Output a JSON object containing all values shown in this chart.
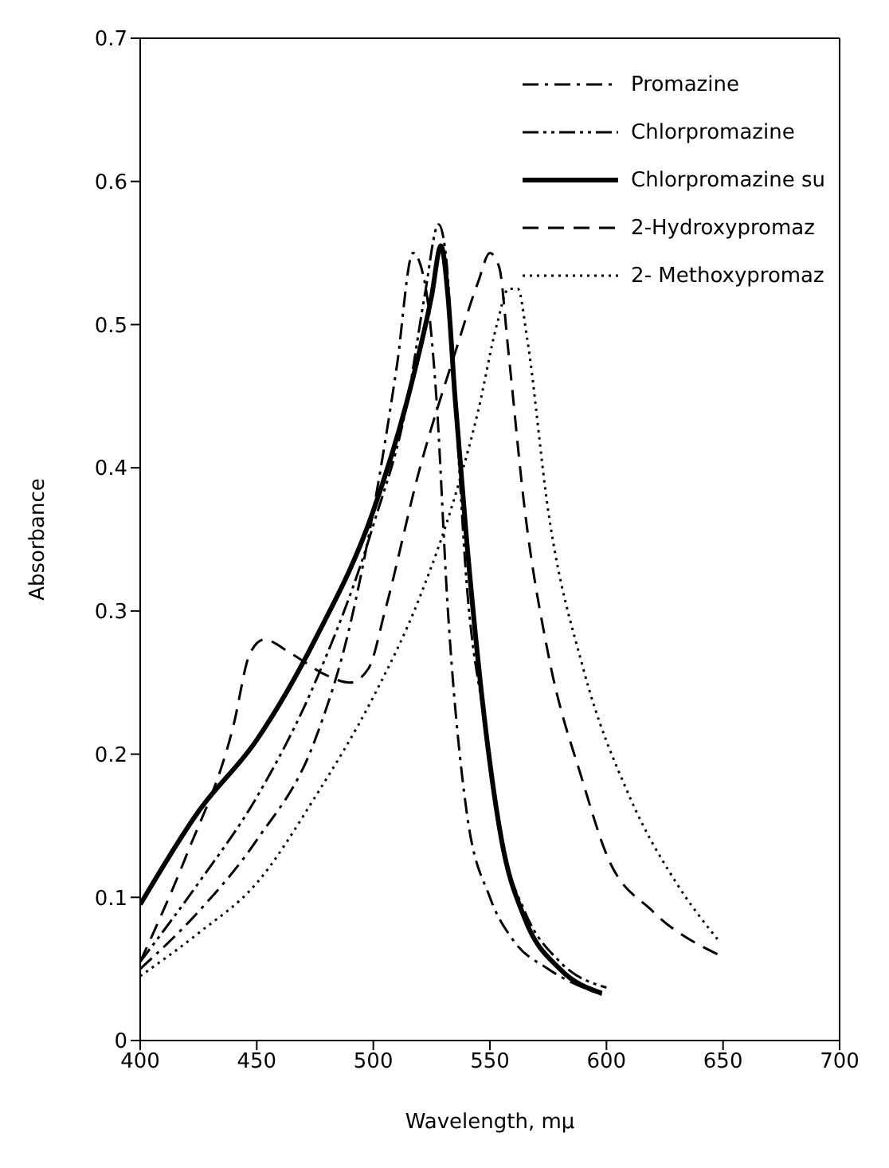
{
  "chart_data": {
    "type": "line",
    "xlabel": "Wavelength,     mμ",
    "ylabel": "Absorbance",
    "xlim": [
      400,
      700
    ],
    "ylim": [
      0,
      0.7
    ],
    "xticks": [
      400,
      450,
      500,
      550,
      600,
      650,
      700
    ],
    "yticks": [
      0,
      0.1,
      0.2,
      0.3,
      0.4,
      0.5,
      0.6,
      0.7
    ],
    "legend": "top right",
    "marker": "none",
    "series": [
      {
        "name": "Promazine",
        "color": "#000000",
        "line_style": "dashdot",
        "x": [
          400,
          425,
          450,
          475,
          490,
          500,
          510,
          517,
          522,
          527,
          532,
          540,
          550,
          560,
          575,
          598
        ],
        "values": [
          0.05,
          0.09,
          0.14,
          0.21,
          0.29,
          0.37,
          0.47,
          0.55,
          0.53,
          0.45,
          0.3,
          0.16,
          0.1,
          0.07,
          0.05,
          0.032
        ]
      },
      {
        "name": "Chlorpromazine",
        "color": "#000000",
        "line_style": "dashdotdot",
        "x": [
          400,
          425,
          450,
          475,
          500,
          515,
          522,
          528,
          531,
          535,
          540,
          548,
          555,
          565,
          580,
          600
        ],
        "values": [
          0.055,
          0.11,
          0.17,
          0.25,
          0.36,
          0.45,
          0.52,
          0.57,
          0.55,
          0.45,
          0.32,
          0.22,
          0.14,
          0.09,
          0.055,
          0.037
        ]
      },
      {
        "name": "Chlorpromazine su",
        "color": "#000000",
        "line_style": "solid",
        "x": [
          400,
          425,
          450,
          475,
          500,
          515,
          525,
          529,
          532,
          535,
          540,
          548,
          555,
          565,
          580,
          598
        ],
        "values": [
          0.095,
          0.16,
          0.21,
          0.28,
          0.37,
          0.45,
          0.52,
          0.555,
          0.52,
          0.45,
          0.35,
          0.22,
          0.14,
          0.085,
          0.05,
          0.033
        ]
      },
      {
        "name": "2-Hydroxypromaz",
        "color": "#000000",
        "line_style": "dashed",
        "x": [
          400,
          420,
          440,
          447,
          453,
          465,
          480,
          490,
          498,
          505,
          520,
          535,
          545,
          550,
          554,
          558,
          565,
          575,
          590,
          600,
          620,
          648
        ],
        "values": [
          0.055,
          0.13,
          0.22,
          0.27,
          0.28,
          0.27,
          0.255,
          0.25,
          0.26,
          0.3,
          0.4,
          0.48,
          0.53,
          0.55,
          0.54,
          0.48,
          0.37,
          0.27,
          0.18,
          0.13,
          0.09,
          0.06
        ]
      },
      {
        "name": "2- Methoxypromaz",
        "color": "#000000",
        "line_style": "dotted",
        "x": [
          400,
          425,
          450,
          475,
          500,
          520,
          535,
          545,
          553,
          558,
          562,
          566,
          575,
          590,
          610,
          630,
          648
        ],
        "values": [
          0.045,
          0.075,
          0.11,
          0.17,
          0.24,
          0.31,
          0.38,
          0.44,
          0.5,
          0.525,
          0.525,
          0.49,
          0.37,
          0.26,
          0.17,
          0.11,
          0.07
        ]
      }
    ]
  }
}
